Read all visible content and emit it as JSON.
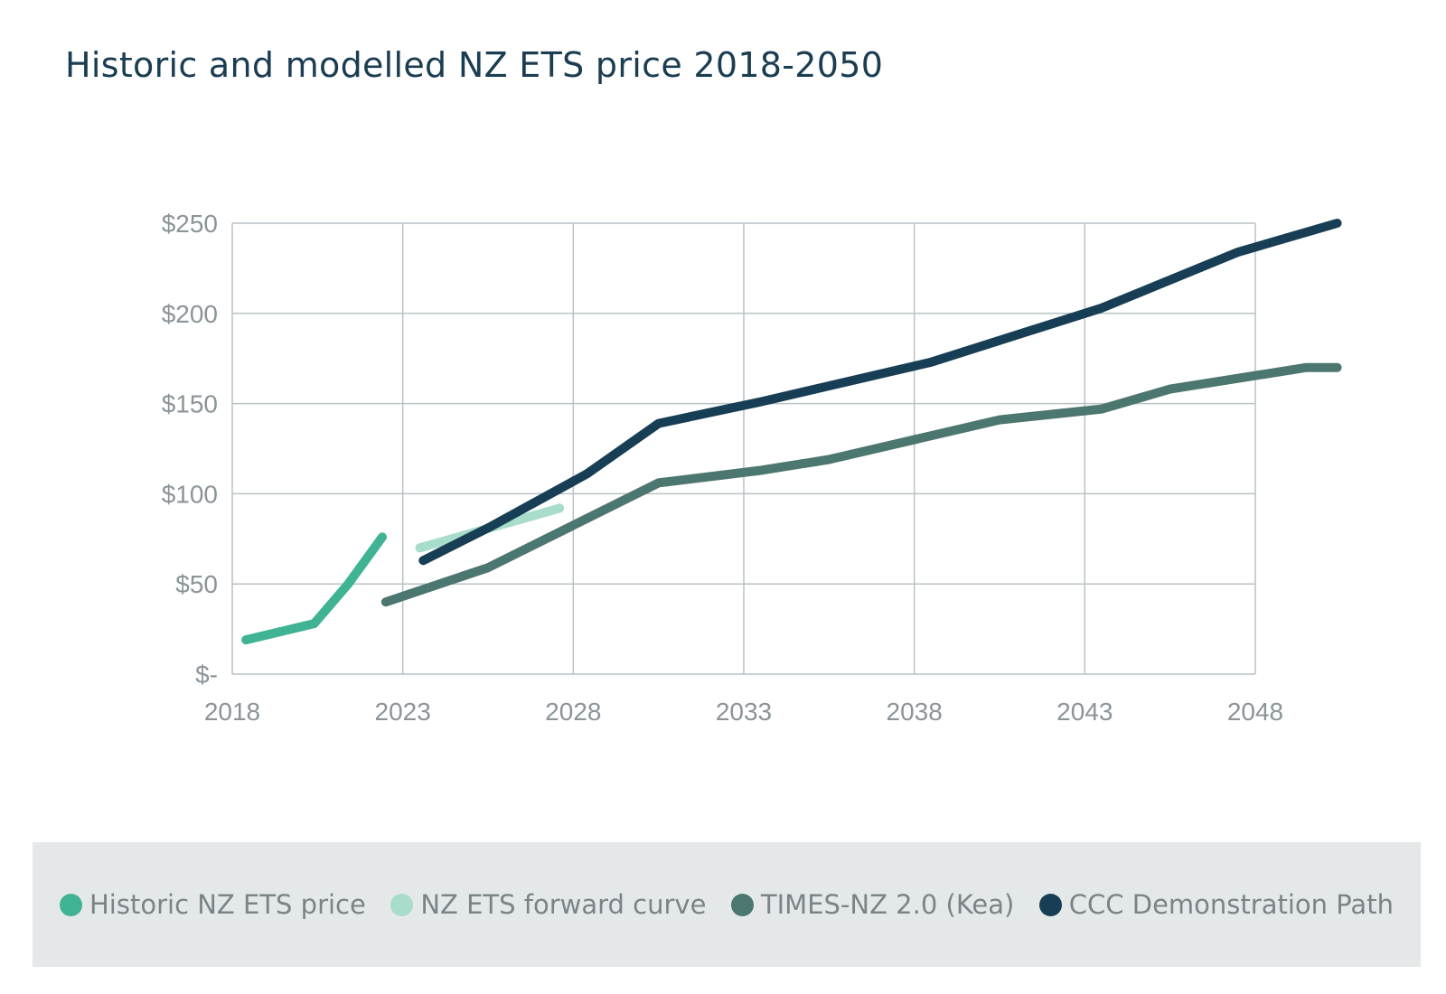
{
  "chart_data": {
    "type": "line",
    "title": "Historic and modelled NZ ETS price 2018-2050",
    "xlabel": "",
    "ylabel": "",
    "xlim": [
      2018,
      2048
    ],
    "ylim": [
      0,
      250
    ],
    "x_ticks": [
      2018,
      2023,
      2028,
      2033,
      2038,
      2043,
      2048
    ],
    "x_tick_labels": [
      "2018",
      "2023",
      "2028",
      "2033",
      "2038",
      "2043",
      "2048"
    ],
    "y_ticks": [
      0,
      50,
      100,
      150,
      200,
      250
    ],
    "y_tick_labels": [
      "$-",
      "$50",
      "$100",
      "$150",
      "$200",
      "$250"
    ],
    "grid": true,
    "legend_position": "bottom",
    "series": [
      {
        "name": "Historic NZ ETS price",
        "color": "#40b394",
        "x": [
          2018.4,
          2020.4,
          2021.4,
          2022.4
        ],
        "y": [
          19,
          28,
          50,
          76
        ]
      },
      {
        "name": "NZ ETS forward curve",
        "color": "#a8dccb",
        "x": [
          2023.5,
          2027.6
        ],
        "y": [
          70,
          92
        ]
      },
      {
        "name": "TIMES-NZ 2.0 (Kea)",
        "color": "#4c7670",
        "x": [
          2022.5,
          2025.5,
          2030.5,
          2033.5,
          2035.5,
          2040.5,
          2043.5,
          2045.5,
          2049.5,
          2050.4
        ],
        "y": [
          40,
          59,
          106,
          113,
          119,
          141,
          147,
          158,
          170,
          170
        ]
      },
      {
        "name": "CCC Demonstration Path",
        "color": "#173e55",
        "x": [
          2023.6,
          2025.6,
          2028.4,
          2030.5,
          2033.5,
          2038.5,
          2043.5,
          2047.5,
          2050.4
        ],
        "y": [
          63,
          82,
          111,
          139,
          151,
          173,
          203,
          234,
          250
        ]
      }
    ]
  }
}
